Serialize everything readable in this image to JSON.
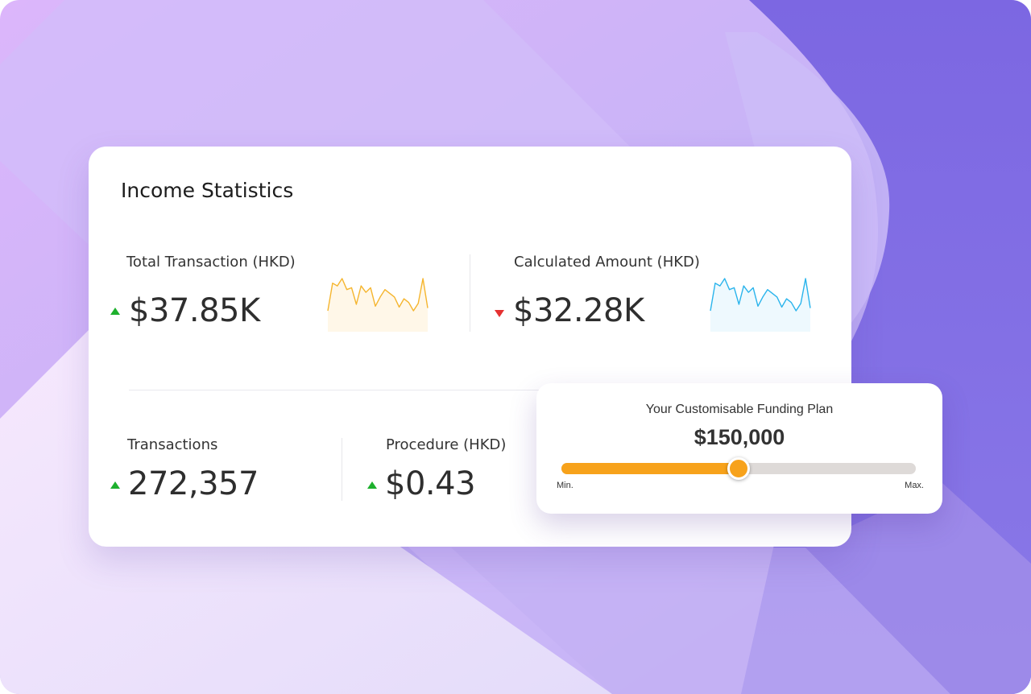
{
  "card": {
    "title": "Income Statistics",
    "stats": [
      {
        "label": "Total Transaction (HKD)",
        "value": "$37.85K",
        "trend": "up"
      },
      {
        "label": "Calculated Amount (HKD)",
        "value": "$32.28K",
        "trend": "down"
      },
      {
        "label": "Transactions",
        "value": "272,357",
        "trend": "up"
      },
      {
        "label": "Procedure (HKD)",
        "value": "$0.43",
        "trend": "up"
      }
    ]
  },
  "sparklines": [
    {
      "color": "#f5b52e",
      "fill": "#fff7e8",
      "values": [
        5,
        35,
        32,
        40,
        28,
        30,
        12,
        32,
        25,
        30,
        10,
        20,
        28,
        24,
        20,
        9,
        18,
        14,
        5,
        13,
        40,
        8
      ]
    },
    {
      "color": "#2ab4ec",
      "fill": "#eef9fe",
      "values": [
        5,
        35,
        32,
        40,
        28,
        30,
        12,
        32,
        25,
        30,
        10,
        20,
        28,
        24,
        20,
        9,
        18,
        14,
        5,
        13,
        40,
        8
      ]
    }
  ],
  "funding": {
    "title": "Your Customisable Funding Plan",
    "amount": "$150,000",
    "level": 0.5,
    "min_label": "Min.",
    "max_label": "Max.",
    "accent": "#f7a21b"
  },
  "colors": {
    "trend_up": "#1db02d",
    "trend_down": "#e53131"
  }
}
